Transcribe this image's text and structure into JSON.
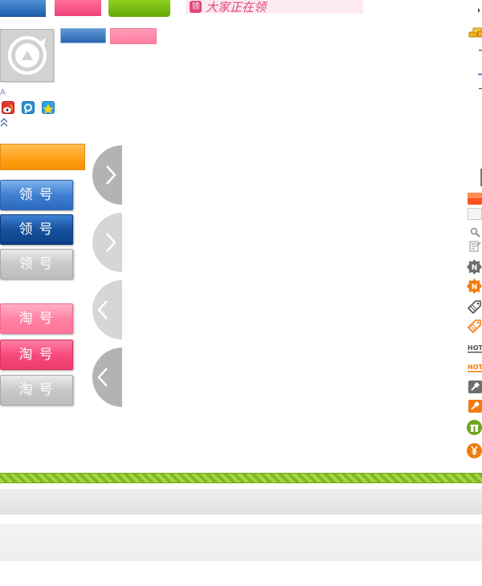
{
  "banner": {
    "icon_label": "领",
    "text": "大家正在领"
  },
  "buttons": {
    "claim": "领号",
    "taobao": "淘号"
  },
  "misc": {
    "small_glyph": "A"
  },
  "icons": {
    "avatar": "logo-placeholder-icon",
    "share": [
      "weibo-icon",
      "tencent-icon",
      "qzone-icon"
    ],
    "collapse": "double-chevron-up-icon",
    "arrows": [
      "arrow-right-icon",
      "arrow-right-icon",
      "arrow-left-icon",
      "arrow-left-icon"
    ],
    "right_column": [
      "coins-icon",
      "orange-square-icon",
      "white-square-icon",
      "magnifier-icon",
      "document-icon",
      "new-badge-gray-icon",
      "new-badge-orange-icon",
      "tag-gray-icon",
      "tag-orange-icon",
      "hot-gray-icon",
      "hot-orange-icon",
      "auction-gray-icon",
      "auction-orange-icon",
      "gift-icon",
      "yuan-icon"
    ]
  },
  "colors": {
    "blue": "#2b69bd",
    "pink": "#ee3a6e",
    "green": "#62a80a",
    "orange": "#ffa019",
    "gray": "#bdbdbd"
  }
}
